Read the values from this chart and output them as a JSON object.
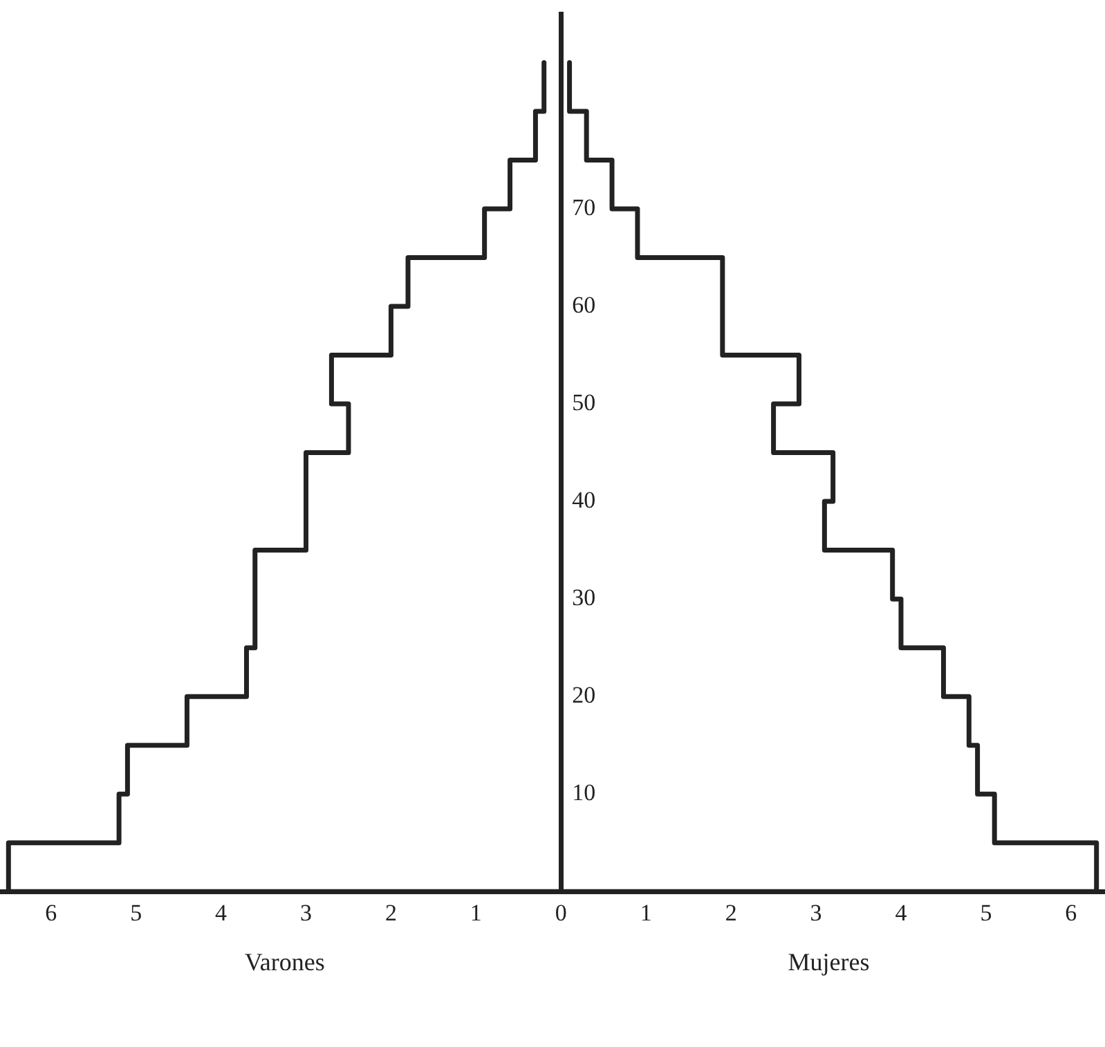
{
  "chart_data": {
    "type": "histogram",
    "orientation": "horizontal",
    "bins": [
      0,
      5,
      10,
      15,
      20,
      25,
      30,
      35,
      40,
      45,
      50,
      55,
      60,
      65,
      70,
      75,
      80,
      85
    ],
    "series": [
      {
        "name": "Varones",
        "color": "#222222",
        "values": [
          -6.5,
          -5.2,
          -5.1,
          -4.4,
          -3.7,
          -3.6,
          -3.6,
          -3.0,
          -3.0,
          -2.5,
          -2.7,
          -2.0,
          -1.8,
          -0.9,
          -0.6,
          -0.3,
          -0.2
        ]
      },
      {
        "name": "Mujeres",
        "color": "#222222",
        "values": [
          6.3,
          5.1,
          4.9,
          4.8,
          4.5,
          4.0,
          3.9,
          3.1,
          3.2,
          2.5,
          2.8,
          1.9,
          1.9,
          0.9,
          0.6,
          0.3,
          0.1
        ]
      }
    ],
    "xlim": [
      -6.6,
      6.4
    ],
    "xticks": [
      {
        "value": -6,
        "label": "6"
      },
      {
        "value": -5,
        "label": "5"
      },
      {
        "value": -4,
        "label": "4"
      },
      {
        "value": -3,
        "label": "3"
      },
      {
        "value": -2,
        "label": "2"
      },
      {
        "value": -1,
        "label": "1"
      },
      0,
      1,
      2,
      3,
      4,
      5,
      6
    ],
    "ylim": [
      0,
      90
    ],
    "yticks": [
      10,
      20,
      30,
      40,
      50,
      60,
      70
    ],
    "grid": false
  }
}
